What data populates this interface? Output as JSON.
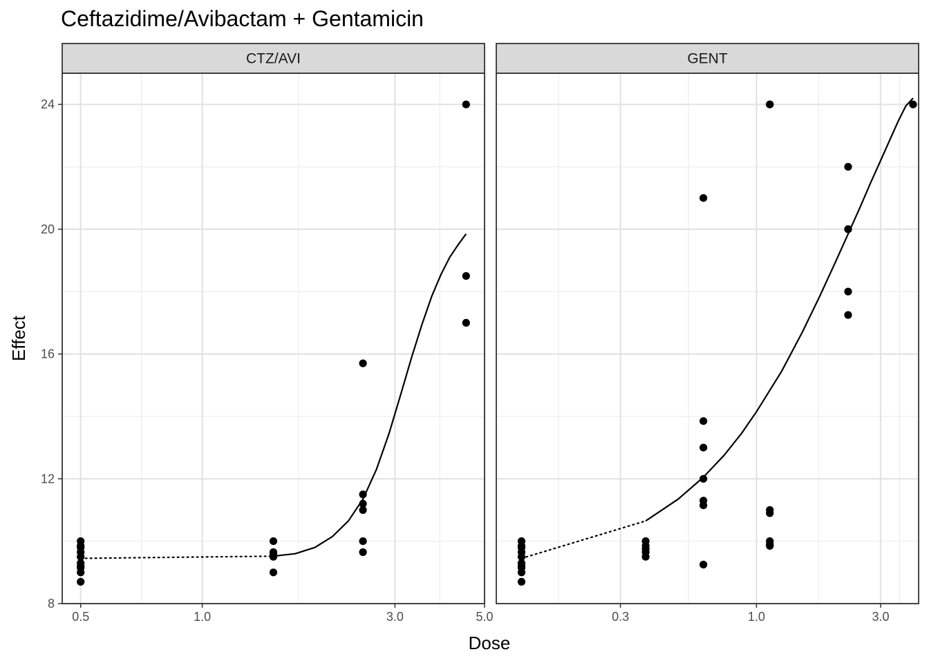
{
  "chart_data": {
    "type": "scatter",
    "title": "Ceftazidime/Avibactam + Gentamicin",
    "xlabel": "Dose",
    "ylabel": "Effect",
    "x_scale": "log",
    "ylim": [
      8,
      25
    ],
    "y_ticks": [
      8,
      12,
      16,
      20,
      24
    ],
    "grid": true,
    "panels": [
      {
        "strip": "CTZ/AVI",
        "xlim": [
          0.45,
          5.0
        ],
        "x_ticks": [
          0.5,
          1.0,
          3.0,
          5.0
        ],
        "x_tick_labels": [
          "0.5",
          "1.0",
          "3.0",
          "5.0"
        ],
        "points": {
          "x": [
            0.5,
            0.5,
            0.5,
            0.5,
            0.5,
            0.5,
            0.5,
            0.5,
            0.5,
            0.5,
            1.5,
            1.5,
            1.5,
            1.5,
            1.5,
            2.5,
            2.5,
            2.5,
            2.5,
            2.5,
            2.5,
            4.5,
            4.5,
            4.5
          ],
          "y": [
            10.0,
            9.85,
            9.65,
            9.5,
            9.3,
            9.15,
            9.0,
            8.7,
            9.8,
            9.2,
            10.0,
            9.65,
            9.5,
            9.0,
            9.6,
            15.7,
            11.5,
            11.2,
            11.0,
            10.0,
            9.65,
            24.0,
            18.5,
            17.0
          ]
        },
        "fit_dotted": {
          "x": [
            0.5,
            1.5
          ],
          "y": [
            9.45,
            9.52
          ]
        },
        "fit_solid": {
          "x": [
            1.5,
            1.7,
            1.9,
            2.1,
            2.3,
            2.5,
            2.7,
            2.9,
            3.1,
            3.3,
            3.5,
            3.7,
            3.9,
            4.1,
            4.3,
            4.5
          ],
          "y": [
            9.52,
            9.6,
            9.8,
            10.15,
            10.65,
            11.35,
            12.3,
            13.45,
            14.7,
            15.9,
            16.95,
            17.85,
            18.55,
            19.1,
            19.5,
            19.85
          ]
        }
      },
      {
        "strip": "GENT",
        "xlim": [
          0.1,
          4.2
        ],
        "x_ticks": [
          0.3,
          1.0,
          3.0
        ],
        "x_tick_labels": [
          "0.3",
          "1.0",
          "3.0"
        ],
        "points": {
          "x": [
            0.125,
            0.125,
            0.125,
            0.125,
            0.125,
            0.125,
            0.125,
            0.125,
            0.125,
            0.125,
            0.375,
            0.375,
            0.375,
            0.375,
            0.375,
            0.625,
            0.625,
            0.625,
            0.625,
            0.625,
            0.625,
            0.625,
            1.125,
            1.125,
            1.125,
            1.125,
            1.125,
            1.125,
            1.125,
            2.25,
            2.25,
            2.25,
            2.25,
            2.25,
            4.0
          ],
          "y": [
            10.0,
            9.85,
            9.65,
            9.5,
            9.3,
            9.15,
            9.0,
            8.7,
            9.8,
            9.2,
            10.0,
            9.85,
            9.65,
            9.5,
            9.75,
            21.0,
            13.85,
            13.0,
            12.0,
            11.3,
            11.15,
            9.25,
            24.0,
            11.0,
            10.9,
            10.0,
            9.85,
            24.0,
            9.9,
            22.0,
            20.0,
            18.0,
            17.25,
            20.0,
            24.0
          ]
        },
        "fit_dotted": {
          "x": [
            0.125,
            0.375
          ],
          "y": [
            9.45,
            10.65
          ]
        },
        "fit_solid": {
          "x": [
            0.375,
            0.5,
            0.625,
            0.75,
            0.875,
            1.0,
            1.25,
            1.5,
            1.75,
            2.0,
            2.25,
            2.5,
            2.75,
            3.0,
            3.25,
            3.5,
            3.75,
            4.0
          ],
          "y": [
            10.65,
            11.35,
            12.05,
            12.75,
            13.45,
            14.15,
            15.45,
            16.7,
            17.85,
            18.9,
            19.85,
            20.7,
            21.5,
            22.2,
            22.85,
            23.45,
            23.95,
            24.2
          ]
        }
      }
    ]
  }
}
